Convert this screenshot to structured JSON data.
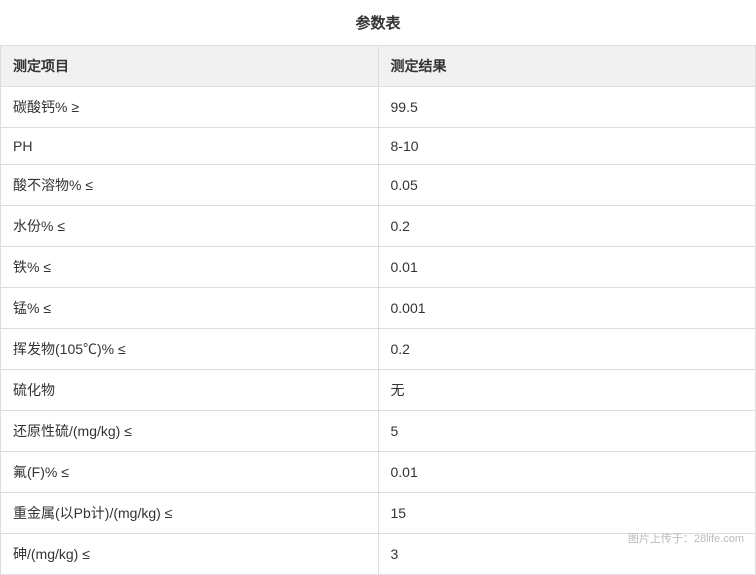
{
  "title": "参数表",
  "table": {
    "columns": [
      "测定项目",
      "测定结果"
    ],
    "rows": [
      [
        "碳酸钙% ≥",
        "99.5"
      ],
      [
        "PH",
        "8-10"
      ],
      [
        "酸不溶物% ≤",
        "0.05"
      ],
      [
        "水份% ≤",
        "0.2"
      ],
      [
        "铁% ≤",
        "0.01"
      ],
      [
        "锰% ≤",
        "0.001"
      ],
      [
        "挥发物(105℃)% ≤",
        "0.2"
      ],
      [
        "硫化物",
        "无"
      ],
      [
        "还原性硫/(mg/kg) ≤",
        "5"
      ],
      [
        "氟(F)% ≤",
        "0.01"
      ],
      [
        "重金属(以Pb计)/(mg/kg) ≤",
        "15"
      ],
      [
        "砷/(mg/kg) ≤",
        "3"
      ]
    ],
    "header_bg_color": "#f1f1f1",
    "border_color": "#dddddd",
    "text_color": "#333333",
    "font_size": 14,
    "title_font_size": 15
  },
  "watermark": "图片上传于：28life.com"
}
